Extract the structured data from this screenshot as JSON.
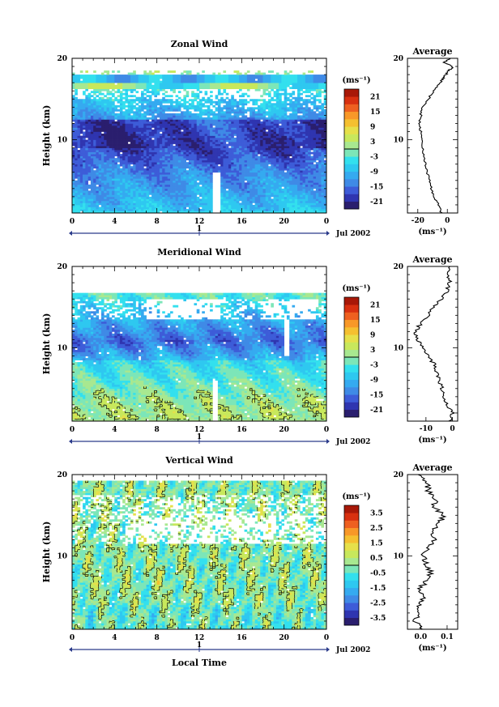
{
  "chart_data": [
    {
      "type": "heatmap",
      "title": "Zonal Wind",
      "ylabel": "Height (km)",
      "xticks": [
        "0",
        "4",
        "8",
        "12",
        "16",
        "20",
        "0"
      ],
      "yticks": [
        "10",
        "20"
      ],
      "ylim": [
        1,
        20
      ],
      "xlim": [
        0,
        24
      ],
      "date_label": "Jul 2002",
      "day_tick": "1",
      "colorbar": {
        "unit": "(ms⁻¹)",
        "levels": [
          -24,
          -21,
          -18,
          -15,
          -12,
          -9,
          -6,
          -3,
          0,
          3,
          6,
          9,
          12,
          15,
          18,
          21,
          24
        ],
        "tick_labels": [
          "21",
          "15",
          "9",
          "3",
          "-3",
          "-9",
          "-15",
          "-21"
        ],
        "tick_values": [
          21,
          15,
          9,
          3,
          -3,
          -9,
          -15,
          -21
        ]
      },
      "profile": {
        "title": "Average",
        "xlabel": "(ms⁻¹)",
        "xticks": [
          "-20",
          "0"
        ],
        "xtick_values": [
          -20,
          0
        ],
        "xlim": [
          -27,
          7
        ],
        "heights": [
          1,
          2,
          3,
          4,
          5,
          6,
          7,
          8,
          9,
          10,
          11,
          12,
          13,
          14,
          15,
          16,
          17,
          17.5,
          18,
          18.5,
          19,
          19.5,
          20
        ],
        "values": [
          -4,
          -6,
          -9,
          -11,
          -12,
          -14,
          -15,
          -16,
          -17,
          -17,
          -18,
          -19,
          -18,
          -17,
          -13,
          -9,
          -5,
          -3,
          -1,
          1,
          4,
          -2,
          2
        ]
      }
    },
    {
      "type": "heatmap",
      "title": "Meridional Wind",
      "ylabel": "Height (km)",
      "xticks": [
        "0",
        "4",
        "8",
        "12",
        "16",
        "20",
        "0"
      ],
      "yticks": [
        "10",
        "20"
      ],
      "ylim": [
        1,
        20
      ],
      "xlim": [
        0,
        24
      ],
      "date_label": "Jul 2002",
      "day_tick": "1",
      "colorbar": {
        "unit": "(ms⁻¹)",
        "levels": [
          -24,
          -21,
          -18,
          -15,
          -12,
          -9,
          -6,
          -3,
          0,
          3,
          6,
          9,
          12,
          15,
          18,
          21,
          24
        ],
        "tick_labels": [
          "21",
          "15",
          "9",
          "3",
          "-3",
          "-9",
          "-15",
          "-21"
        ],
        "tick_values": [
          21,
          15,
          9,
          3,
          -3,
          -9,
          -15,
          -21
        ]
      },
      "profile": {
        "title": "Average",
        "xlabel": "(ms⁻¹)",
        "xticks": [
          "-10",
          "0"
        ],
        "xtick_values": [
          -10,
          0
        ],
        "xlim": [
          -17,
          2
        ],
        "heights": [
          1,
          2,
          3,
          4,
          5,
          6,
          7,
          8,
          9,
          10,
          11,
          12,
          13,
          14,
          15,
          16,
          17,
          18,
          19,
          20
        ],
        "values": [
          -1,
          0,
          -2,
          -3,
          -4,
          -5,
          -6,
          -7,
          -9,
          -11,
          -13,
          -14,
          -12,
          -9,
          -7,
          -4,
          -2,
          -1,
          -2,
          -1
        ]
      }
    },
    {
      "type": "heatmap",
      "title": "Vertical Wind",
      "xlabel": "Local Time",
      "ylabel": "Height (km)",
      "xticks": [
        "0",
        "4",
        "8",
        "12",
        "16",
        "20",
        "0"
      ],
      "yticks": [
        "10",
        "20"
      ],
      "ylim": [
        1,
        20
      ],
      "xlim": [
        0,
        24
      ],
      "date_label": "Jul 2002",
      "day_tick": "1",
      "colorbar": {
        "unit": "(ms⁻¹)",
        "levels": [
          -4,
          -3.5,
          -3,
          -2.5,
          -2,
          -1.5,
          -1,
          -0.5,
          0,
          0.5,
          1,
          1.5,
          2,
          2.5,
          3,
          3.5,
          4
        ],
        "tick_labels": [
          "3.5",
          "2.5",
          "1.5",
          "0.5",
          "-0.5",
          "-1.5",
          "-2.5",
          "-3.5"
        ],
        "tick_values": [
          3.5,
          2.5,
          1.5,
          0.5,
          -0.5,
          -1.5,
          -2.5,
          -3.5
        ]
      },
      "profile": {
        "title": "Average",
        "xlabel": "(ms⁻¹)",
        "xticks": [
          "0.0",
          "0.1"
        ],
        "xtick_values": [
          0.0,
          0.1
        ],
        "xlim": [
          -0.05,
          0.14
        ],
        "heights": [
          1,
          2,
          3,
          4,
          5,
          6,
          7,
          8,
          9,
          10,
          11,
          12,
          13,
          14,
          15,
          16,
          17,
          18,
          19,
          20
        ],
        "values": [
          0.0,
          -0.02,
          0.0,
          -0.01,
          0.01,
          0.0,
          0.02,
          0.04,
          0.02,
          0.01,
          0.03,
          0.05,
          0.04,
          0.07,
          0.09,
          0.05,
          0.06,
          0.03,
          0.02,
          -0.01
        ]
      }
    }
  ],
  "palette": [
    "#2a1e6e",
    "#2f35b0",
    "#3d5cd8",
    "#3f8ae6",
    "#35aaf0",
    "#2ec8f0",
    "#33e0ee",
    "#7ce6b8",
    "#a8e890",
    "#c8e85c",
    "#e6e04a",
    "#f5c030",
    "#f89828",
    "#ee6020",
    "#d83010",
    "#a81808"
  ]
}
